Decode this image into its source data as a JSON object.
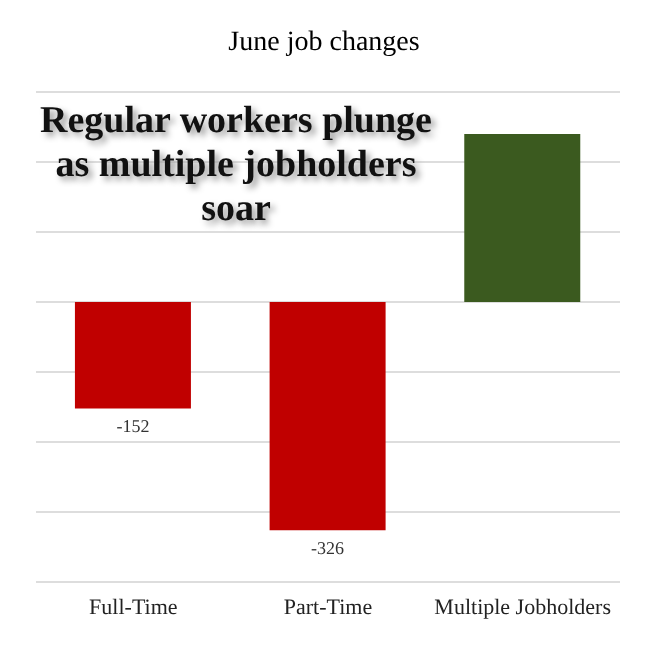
{
  "chart_data": {
    "type": "bar",
    "title": "June job changes",
    "annotations": [
      "Regular workers plunge as multiple jobholders soar"
    ],
    "categories": [
      "Full-Time",
      "Part-Time",
      "Multiple Jobholders"
    ],
    "values": [
      -152,
      -326,
      240
    ],
    "colors": [
      "#c00000",
      "#c00000",
      "#3b5a1f"
    ],
    "value_labels": [
      "-152",
      "-326",
      null
    ],
    "ylim": [
      -400,
      300
    ],
    "yticks": [
      {
        "value": -400,
        "label": null
      },
      {
        "value": -300,
        "label": null
      },
      {
        "value": -200,
        "label": null
      },
      {
        "value": -100,
        "label": null
      },
      {
        "value": 0,
        "label": null
      },
      {
        "value": 100,
        "label": null
      },
      {
        "value": 200,
        "label": null
      },
      {
        "value": 300,
        "label": null
      }
    ],
    "grid": "y"
  }
}
